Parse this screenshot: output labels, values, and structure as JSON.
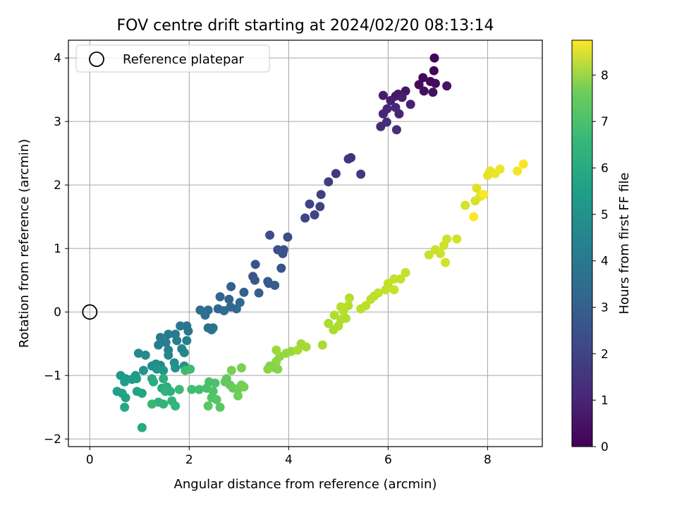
{
  "chart_data": {
    "type": "scatter",
    "title": "FOV centre drift starting at 2024/02/20 08:13:14",
    "xlabel": "Angular distance from reference (arcmin)",
    "ylabel": "Rotation from reference (arcmin)",
    "xlim": [
      -0.43,
      9.1
    ],
    "ylim": [
      -2.12,
      4.28
    ],
    "xticks": [
      0,
      2,
      4,
      6,
      8
    ],
    "yticks": [
      -2,
      -1,
      0,
      1,
      2,
      3,
      4
    ],
    "grid": true,
    "legend": {
      "location": "upper-left",
      "entries": [
        "Reference platepar"
      ]
    },
    "reference_point": {
      "x": 0,
      "y": 0,
      "marker": "open-circle"
    },
    "colorbar": {
      "label": "Hours from first FF file",
      "range": [
        0,
        8.75
      ],
      "ticks": [
        0,
        1,
        2,
        3,
        4,
        5,
        6,
        7,
        8
      ],
      "colormap": "viridis"
    },
    "points": [
      [
        6.93,
        4.0,
        0.05
      ],
      [
        6.92,
        3.8,
        0.1
      ],
      [
        6.7,
        3.69,
        0.15
      ],
      [
        6.85,
        3.63,
        0.2
      ],
      [
        6.62,
        3.58,
        0.25
      ],
      [
        6.95,
        3.6,
        0.3
      ],
      [
        6.72,
        3.48,
        0.35
      ],
      [
        6.9,
        3.46,
        0.4
      ],
      [
        7.18,
        3.56,
        0.45
      ],
      [
        6.35,
        3.48,
        0.5
      ],
      [
        6.2,
        3.43,
        0.55
      ],
      [
        6.15,
        3.4,
        0.6
      ],
      [
        5.9,
        3.41,
        0.65
      ],
      [
        6.05,
        3.33,
        0.7
      ],
      [
        6.28,
        3.38,
        0.75
      ],
      [
        6.45,
        3.27,
        0.8
      ],
      [
        6.22,
        3.12,
        0.85
      ],
      [
        5.98,
        3.2,
        0.9
      ],
      [
        5.9,
        3.12,
        0.95
      ],
      [
        6.15,
        3.22,
        1.0
      ],
      [
        5.85,
        2.92,
        1.05
      ],
      [
        5.97,
        2.99,
        1.1
      ],
      [
        6.17,
        2.87,
        1.15
      ],
      [
        5.25,
        2.43,
        1.25
      ],
      [
        5.2,
        2.41,
        1.3
      ],
      [
        5.45,
        2.17,
        1.4
      ],
      [
        4.95,
        2.18,
        1.45
      ],
      [
        4.8,
        2.05,
        1.55
      ],
      [
        4.65,
        1.85,
        1.65
      ],
      [
        4.63,
        1.66,
        1.7
      ],
      [
        4.42,
        1.7,
        1.75
      ],
      [
        4.52,
        1.53,
        1.8
      ],
      [
        4.33,
        1.48,
        1.9
      ],
      [
        3.98,
        1.18,
        2.0
      ],
      [
        3.62,
        1.21,
        2.05
      ],
      [
        3.78,
        0.98,
        2.1
      ],
      [
        3.88,
        0.92,
        2.15
      ],
      [
        3.9,
        0.98,
        2.2
      ],
      [
        3.85,
        0.69,
        2.25
      ],
      [
        3.33,
        0.75,
        2.3
      ],
      [
        3.28,
        0.56,
        2.35
      ],
      [
        3.32,
        0.5,
        2.4
      ],
      [
        3.58,
        0.48,
        2.45
      ],
      [
        3.6,
        0.45,
        2.5
      ],
      [
        3.72,
        0.42,
        2.55
      ],
      [
        3.4,
        0.3,
        2.6
      ],
      [
        3.1,
        0.31,
        2.65
      ],
      [
        2.84,
        0.4,
        2.7
      ],
      [
        2.8,
        0.2,
        2.75
      ],
      [
        2.62,
        0.24,
        2.8
      ],
      [
        2.58,
        0.05,
        2.85
      ],
      [
        2.83,
        0.08,
        2.9
      ],
      [
        2.95,
        0.05,
        2.95
      ],
      [
        3.02,
        0.15,
        3.0
      ],
      [
        2.7,
        0.02,
        3.05
      ],
      [
        2.38,
        0.03,
        3.1
      ],
      [
        2.22,
        0.03,
        3.15
      ],
      [
        2.32,
        -0.05,
        3.2
      ],
      [
        2.38,
        -0.25,
        3.25
      ],
      [
        2.45,
        -0.28,
        3.3
      ],
      [
        2.48,
        -0.25,
        3.35
      ],
      [
        1.95,
        -0.22,
        3.4
      ],
      [
        1.98,
        -0.3,
        3.45
      ],
      [
        1.82,
        -0.22,
        3.5
      ],
      [
        1.72,
        -0.35,
        3.55
      ],
      [
        1.58,
        -0.35,
        3.6
      ],
      [
        1.42,
        -0.4,
        3.65
      ],
      [
        1.53,
        -0.48,
        3.7
      ],
      [
        1.75,
        -0.45,
        3.75
      ],
      [
        1.38,
        -0.52,
        3.8
      ],
      [
        1.95,
        -0.45,
        3.85
      ],
      [
        1.58,
        -0.6,
        3.9
      ],
      [
        1.85,
        -0.58,
        3.95
      ],
      [
        1.9,
        -0.64,
        4.0
      ],
      [
        1.58,
        -0.68,
        4.05
      ],
      [
        0.98,
        -0.65,
        4.1
      ],
      [
        1.12,
        -0.68,
        4.15
      ],
      [
        1.42,
        -0.84,
        4.2
      ],
      [
        1.33,
        -0.82,
        4.25
      ],
      [
        1.25,
        -0.85,
        4.3
      ],
      [
        1.7,
        -0.8,
        4.35
      ],
      [
        1.9,
        -0.85,
        4.4
      ],
      [
        1.72,
        -0.88,
        4.45
      ],
      [
        1.08,
        -0.92,
        4.5
      ],
      [
        1.35,
        -0.9,
        4.55
      ],
      [
        1.48,
        -0.92,
        4.6
      ],
      [
        0.62,
        -1.0,
        4.65
      ],
      [
        0.72,
        -1.05,
        4.7
      ],
      [
        0.85,
        -1.06,
        4.75
      ],
      [
        0.92,
        -1.0,
        4.8
      ],
      [
        0.94,
        -1.05,
        4.85
      ],
      [
        0.7,
        -1.1,
        4.9
      ],
      [
        0.55,
        -1.25,
        4.95
      ],
      [
        0.65,
        -1.28,
        5.0
      ],
      [
        0.72,
        -1.35,
        5.05
      ],
      [
        0.95,
        -1.25,
        5.1
      ],
      [
        1.05,
        -1.28,
        5.15
      ],
      [
        0.7,
        -1.5,
        5.2
      ],
      [
        1.05,
        -1.82,
        5.25
      ],
      [
        1.25,
        -1.05,
        5.3
      ],
      [
        1.28,
        -1.1,
        5.35
      ],
      [
        1.45,
        -1.2,
        5.4
      ],
      [
        1.48,
        -1.05,
        5.45
      ],
      [
        1.55,
        -1.18,
        5.5
      ],
      [
        1.62,
        -1.25,
        5.55
      ],
      [
        1.52,
        -1.25,
        5.6
      ],
      [
        1.38,
        -1.42,
        5.65
      ],
      [
        1.48,
        -1.45,
        5.7
      ],
      [
        1.65,
        -1.4,
        5.75
      ],
      [
        1.72,
        -1.48,
        5.8
      ],
      [
        1.25,
        -1.45,
        5.85
      ],
      [
        1.8,
        -1.22,
        5.9
      ],
      [
        1.92,
        -0.92,
        5.95
      ],
      [
        2.02,
        -0.9,
        6.0
      ],
      [
        2.05,
        -1.22,
        6.05
      ],
      [
        2.2,
        -1.22,
        6.1
      ],
      [
        2.35,
        -1.2,
        6.15
      ],
      [
        2.4,
        -1.1,
        6.2
      ],
      [
        2.52,
        -1.12,
        6.25
      ],
      [
        2.48,
        -1.25,
        6.3
      ],
      [
        2.45,
        -1.35,
        6.35
      ],
      [
        2.55,
        -1.38,
        6.4
      ],
      [
        2.38,
        -1.48,
        6.45
      ],
      [
        2.62,
        -1.5,
        6.5
      ],
      [
        2.75,
        -1.05,
        6.55
      ],
      [
        2.72,
        -1.1,
        6.6
      ],
      [
        2.82,
        -1.15,
        6.65
      ],
      [
        2.88,
        -1.2,
        6.7
      ],
      [
        3.0,
        -1.2,
        6.75
      ],
      [
        2.98,
        -1.32,
        6.8
      ],
      [
        3.05,
        -1.15,
        6.85
      ],
      [
        3.1,
        -1.18,
        6.9
      ],
      [
        2.85,
        -0.92,
        6.95
      ],
      [
        3.05,
        -0.88,
        7.0
      ],
      [
        3.62,
        -0.85,
        7.05
      ],
      [
        3.72,
        -0.88,
        7.1
      ],
      [
        3.78,
        -0.9,
        7.15
      ],
      [
        3.58,
        -0.9,
        7.2
      ],
      [
        3.75,
        -0.78,
        7.25
      ],
      [
        3.82,
        -0.7,
        7.3
      ],
      [
        3.95,
        -0.65,
        7.35
      ],
      [
        4.05,
        -0.62,
        7.4
      ],
      [
        3.75,
        -0.6,
        7.45
      ],
      [
        4.25,
        -0.5,
        7.5
      ],
      [
        4.35,
        -0.55,
        7.55
      ],
      [
        4.18,
        -0.6,
        7.6
      ],
      [
        4.68,
        -0.52,
        7.62
      ],
      [
        4.9,
        -0.28,
        7.64
      ],
      [
        5.0,
        -0.22,
        7.66
      ],
      [
        4.8,
        -0.18,
        7.68
      ],
      [
        5.05,
        -0.12,
        7.7
      ],
      [
        5.15,
        -0.1,
        7.72
      ],
      [
        4.92,
        -0.05,
        7.74
      ],
      [
        5.1,
        0.02,
        7.76
      ],
      [
        5.2,
        0.1,
        7.78
      ],
      [
        5.22,
        0.22,
        7.8
      ],
      [
        5.05,
        0.08,
        7.82
      ],
      [
        5.45,
        0.05,
        7.84
      ],
      [
        5.55,
        0.1,
        7.86
      ],
      [
        5.65,
        0.2,
        7.88
      ],
      [
        5.72,
        0.25,
        7.9
      ],
      [
        5.8,
        0.3,
        7.92
      ],
      [
        5.95,
        0.35,
        7.94
      ],
      [
        6.0,
        0.45,
        7.96
      ],
      [
        6.12,
        0.52,
        7.98
      ],
      [
        6.25,
        0.52,
        8.0
      ],
      [
        6.35,
        0.62,
        8.02
      ],
      [
        6.12,
        0.35,
        8.04
      ],
      [
        6.82,
        0.9,
        8.06
      ],
      [
        6.95,
        0.98,
        8.08
      ],
      [
        7.05,
        0.92,
        8.1
      ],
      [
        7.12,
        1.05,
        8.12
      ],
      [
        7.18,
        1.15,
        8.14
      ],
      [
        7.38,
        1.15,
        8.16
      ],
      [
        7.15,
        0.78,
        8.18
      ],
      [
        7.55,
        1.68,
        8.2
      ],
      [
        7.75,
        1.75,
        8.25
      ],
      [
        7.85,
        1.82,
        8.3
      ],
      [
        7.78,
        1.95,
        8.35
      ],
      [
        8.0,
        2.15,
        8.4
      ],
      [
        8.05,
        2.22,
        8.45
      ],
      [
        8.15,
        2.18,
        8.5
      ],
      [
        8.25,
        2.25,
        8.55
      ],
      [
        8.6,
        2.22,
        8.6
      ],
      [
        8.72,
        2.33,
        8.65
      ],
      [
        7.72,
        1.5,
        8.7
      ],
      [
        7.92,
        1.85,
        8.72
      ]
    ]
  }
}
